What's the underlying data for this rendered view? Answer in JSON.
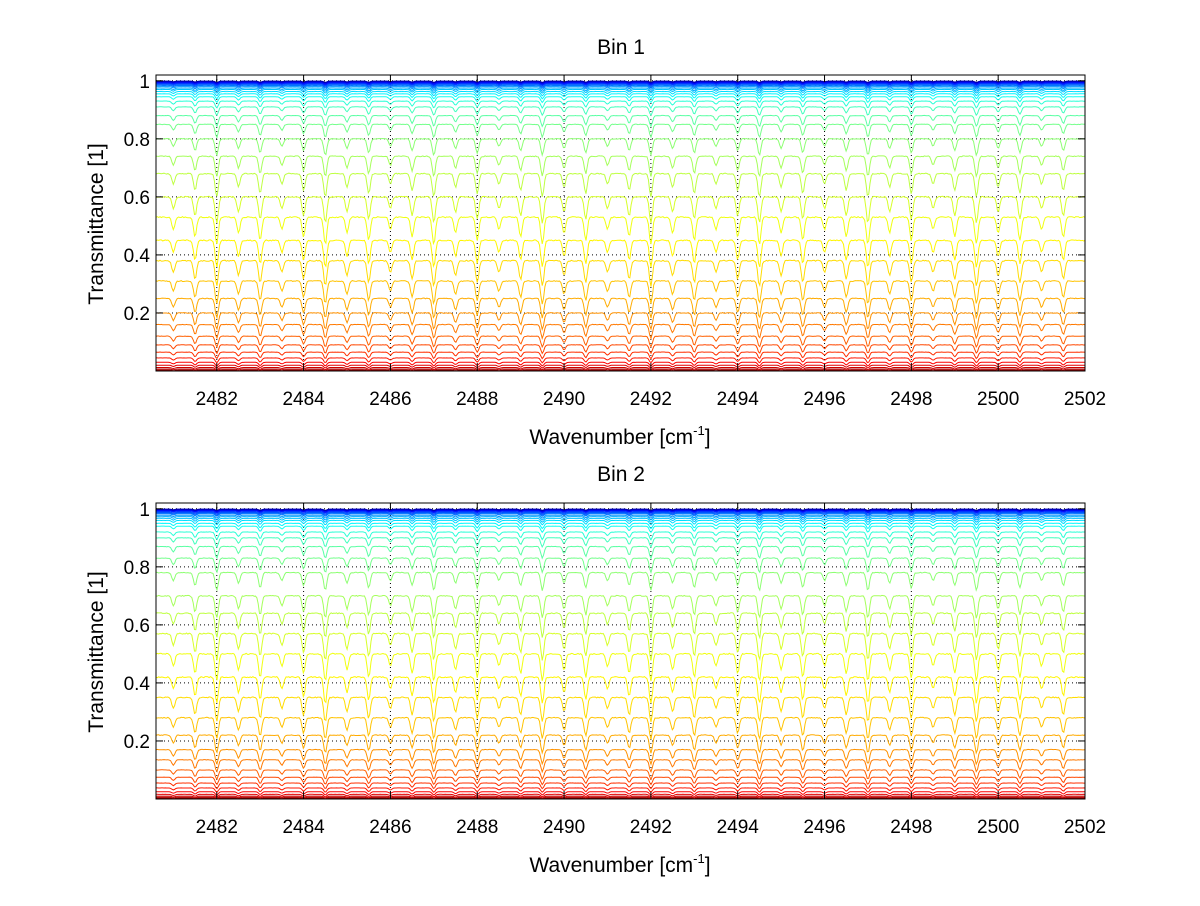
{
  "chart_data": [
    {
      "type": "line",
      "title": "Bin 1",
      "xlabel": "Wavenumber [cm",
      "xlabel_sup": "-1",
      "xlabel_end": "]",
      "ylabel": "Transmittance [1]",
      "xlim": [
        2480.6,
        2502
      ],
      "ylim": [
        0,
        1.02
      ],
      "xticks": [
        "2482",
        "2484",
        "2486",
        "2488",
        "2490",
        "2492",
        "2494",
        "2496",
        "2498",
        "2500",
        "2502"
      ],
      "yticks": [
        "0.2",
        "0.4",
        "0.6",
        "0.8",
        "1"
      ],
      "grid": true,
      "line_count": 40,
      "series_levels": [
        0.0,
        0.003,
        0.007,
        0.012,
        0.02,
        0.03,
        0.045,
        0.065,
        0.09,
        0.12,
        0.16,
        0.2,
        0.25,
        0.31,
        0.38,
        0.45,
        0.53,
        0.6,
        0.68,
        0.74,
        0.8,
        0.85,
        0.88,
        0.91,
        0.93,
        0.945,
        0.955,
        0.963,
        0.97,
        0.975,
        0.98,
        0.984,
        0.987,
        0.99,
        0.992,
        0.994,
        0.996,
        0.997,
        0.998,
        0.999
      ],
      "absorption_line_positions": [
        2481.0,
        2481.5,
        2482.0,
        2482.5,
        2483.0,
        2483.5,
        2484.0,
        2484.5,
        2485.0,
        2485.5,
        2486.0,
        2486.5,
        2487.0,
        2487.5,
        2488.0,
        2488.5,
        2489.0,
        2489.5,
        2490.0,
        2490.5,
        2491.0,
        2491.5,
        2492.0,
        2492.5,
        2493.0,
        2493.5,
        2494.0,
        2494.5,
        2495.0,
        2495.5,
        2496.0,
        2496.5,
        2497.0,
        2497.5,
        2498.0,
        2498.5,
        2499.0,
        2499.5,
        2500.0,
        2500.5,
        2501.0,
        2501.5
      ],
      "colormap": "jet",
      "colors": {
        "dark_red": "#8b0000",
        "red": "#cc1100",
        "orange": "#e06a10",
        "yellow": "#f2d21b",
        "cyan": "#2fb5d8",
        "blue": "#003ea8"
      }
    },
    {
      "type": "line",
      "title": "Bin 2",
      "xlabel": "Wavenumber [cm",
      "xlabel_sup": "-1",
      "xlabel_end": "]",
      "ylabel": "Transmittance [1]",
      "xlim": [
        2480.6,
        2502
      ],
      "ylim": [
        0,
        1.02
      ],
      "xticks": [
        "2482",
        "2484",
        "2486",
        "2488",
        "2490",
        "2492",
        "2494",
        "2496",
        "2498",
        "2500",
        "2502"
      ],
      "yticks": [
        "0.2",
        "0.4",
        "0.6",
        "0.8",
        "1"
      ],
      "grid": true,
      "line_count": 40,
      "series_levels": [
        0.0,
        0.003,
        0.006,
        0.01,
        0.016,
        0.025,
        0.038,
        0.055,
        0.075,
        0.1,
        0.135,
        0.17,
        0.22,
        0.28,
        0.35,
        0.42,
        0.5,
        0.57,
        0.64,
        0.7,
        0.78,
        0.83,
        0.87,
        0.9,
        0.92,
        0.94,
        0.95,
        0.96,
        0.967,
        0.973,
        0.978,
        0.983,
        0.986,
        0.989,
        0.992,
        0.994,
        0.996,
        0.997,
        0.998,
        0.999
      ],
      "absorption_line_positions": [
        2481.0,
        2481.5,
        2482.0,
        2482.5,
        2483.0,
        2483.5,
        2484.0,
        2484.5,
        2485.0,
        2485.5,
        2486.0,
        2486.5,
        2487.0,
        2487.5,
        2488.0,
        2488.5,
        2489.0,
        2489.5,
        2490.0,
        2490.5,
        2491.0,
        2491.5,
        2492.0,
        2492.5,
        2493.0,
        2493.5,
        2494.0,
        2494.5,
        2495.0,
        2495.5,
        2496.0,
        2496.5,
        2497.0,
        2497.5,
        2498.0,
        2498.5,
        2499.0,
        2499.5,
        2500.0,
        2500.5,
        2501.0,
        2501.5
      ],
      "colormap": "jet",
      "colors": {
        "dark_red": "#8b0000",
        "red": "#cc1100",
        "orange": "#e06a10",
        "yellow": "#f2d21b",
        "cyan": "#2fb5d8",
        "blue": "#003ea8"
      }
    }
  ]
}
